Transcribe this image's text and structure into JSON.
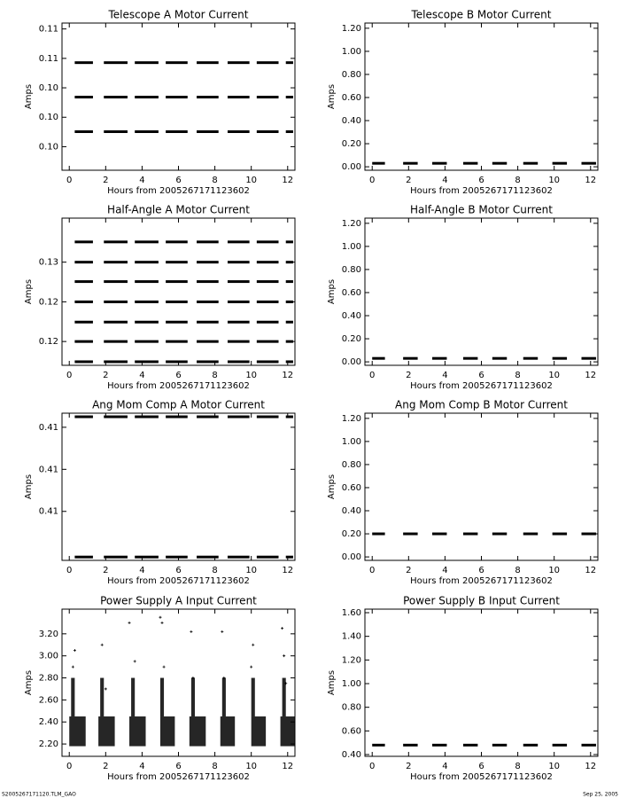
{
  "chart_data": [
    {
      "type": "scatter",
      "title": "Telescope A Motor Current",
      "xlabel": "Hours from 2005267171123602",
      "ylabel": "Amps",
      "color": "#000000",
      "xlim": [
        -0.4,
        12.4
      ],
      "xticks": [
        0,
        2,
        4,
        6,
        8,
        10,
        12
      ],
      "ylim": [
        0.0984,
        0.1084
      ],
      "yticks": [
        {
          "value": 0.108,
          "label": "0.11"
        },
        {
          "value": 0.106,
          "label": "0.11"
        },
        {
          "value": 0.104,
          "label": "0.10"
        },
        {
          "value": 0.102,
          "label": "0.10"
        },
        {
          "value": 0.1,
          "label": "0.10"
        }
      ],
      "levels": [
        0.10571,
        0.10337,
        0.10102
      ],
      "segments": [
        [
          0.3,
          1.3
        ],
        [
          1.9,
          3.2
        ],
        [
          3.6,
          4.9
        ],
        [
          5.3,
          6.5
        ],
        [
          7.0,
          8.2
        ],
        [
          8.7,
          9.9
        ],
        [
          10.3,
          11.5
        ],
        [
          11.9,
          12.3
        ]
      ]
    },
    {
      "type": "scatter",
      "title": "Telescope B Motor Current",
      "xlabel": "Hours from 2005267171123602",
      "ylabel": "Amps",
      "color": "#000000",
      "xlim": [
        -0.4,
        12.4
      ],
      "xticks": [
        0,
        2,
        4,
        6,
        8,
        10,
        12
      ],
      "ylim": [
        -0.03,
        1.245
      ],
      "yticks": [
        {
          "value": 0,
          "label": "0.00"
        },
        {
          "value": 0.2,
          "label": "0.20"
        },
        {
          "value": 0.4,
          "label": "0.40"
        },
        {
          "value": 0.6,
          "label": "0.60"
        },
        {
          "value": 0.8,
          "label": "0.80"
        },
        {
          "value": 1.0,
          "label": "1.00"
        },
        {
          "value": 1.2,
          "label": "1.20"
        }
      ],
      "levels": [
        0.03
      ],
      "segments": [
        [
          0.0,
          0.7
        ],
        [
          1.7,
          2.5
        ],
        [
          3.3,
          4.1
        ],
        [
          5.0,
          5.8
        ],
        [
          6.6,
          7.4
        ],
        [
          8.3,
          9.1
        ],
        [
          9.9,
          10.7
        ],
        [
          11.5,
          12.3
        ]
      ]
    },
    {
      "type": "scatter",
      "title": "Half-Angle A Motor Current",
      "xlabel": "Hours from 2005267171123602",
      "ylabel": "Amps",
      "color": "#000000",
      "xlim": [
        -0.4,
        12.4
      ],
      "xticks": [
        0,
        2,
        4,
        6,
        8,
        10,
        12
      ],
      "ylim": [
        0.1176,
        0.13244
      ],
      "yticks": [
        {
          "value": 0.128,
          "label": "0.13"
        },
        {
          "value": 0.124,
          "label": "0.12"
        },
        {
          "value": 0.12,
          "label": "0.12"
        }
      ],
      "levels": [
        0.13004,
        0.128,
        0.12604,
        0.124,
        0.12196,
        0.12,
        0.11796
      ],
      "segments": [
        [
          0.3,
          1.3
        ],
        [
          1.9,
          3.2
        ],
        [
          3.6,
          4.9
        ],
        [
          5.3,
          6.5
        ],
        [
          7.0,
          8.2
        ],
        [
          8.7,
          9.9
        ],
        [
          10.3,
          11.5
        ],
        [
          11.9,
          12.3
        ]
      ]
    },
    {
      "type": "scatter",
      "title": "Half-Angle B Motor Current",
      "xlabel": "Hours from 2005267171123602",
      "ylabel": "Amps",
      "color": "#000000",
      "xlim": [
        -0.4,
        12.4
      ],
      "xticks": [
        0,
        2,
        4,
        6,
        8,
        10,
        12
      ],
      "ylim": [
        -0.03,
        1.245
      ],
      "yticks": [
        {
          "value": 0,
          "label": "0.00"
        },
        {
          "value": 0.2,
          "label": "0.20"
        },
        {
          "value": 0.4,
          "label": "0.40"
        },
        {
          "value": 0.6,
          "label": "0.60"
        },
        {
          "value": 0.8,
          "label": "0.80"
        },
        {
          "value": 1.0,
          "label": "1.00"
        },
        {
          "value": 1.2,
          "label": "1.20"
        }
      ],
      "levels": [
        0.03
      ],
      "segments": [
        [
          0.0,
          0.7
        ],
        [
          1.7,
          2.5
        ],
        [
          3.3,
          4.1
        ],
        [
          5.0,
          5.8
        ],
        [
          6.6,
          7.4
        ],
        [
          8.3,
          9.1
        ],
        [
          9.9,
          10.7
        ],
        [
          11.5,
          12.3
        ]
      ]
    },
    {
      "type": "scatter",
      "title": "Ang Mom Comp A Motor Current",
      "xlabel": "Hours from 2005267171123602",
      "ylabel": "Amps",
      "color": "#000000",
      "xlim": [
        -0.4,
        12.4
      ],
      "xticks": [
        0,
        2,
        4,
        6,
        8,
        10,
        12
      ],
      "ylim": [
        0.40767,
        0.41467
      ],
      "yticks": [
        {
          "value": 0.414,
          "label": "0.41"
        },
        {
          "value": 0.412,
          "label": "0.41"
        },
        {
          "value": 0.41,
          "label": "0.41"
        }
      ],
      "levels": [
        0.4145,
        0.40783
      ],
      "segments": [
        [
          0.3,
          1.3
        ],
        [
          1.9,
          3.2
        ],
        [
          3.6,
          4.9
        ],
        [
          5.3,
          6.5
        ],
        [
          7.0,
          8.2
        ],
        [
          8.7,
          9.9
        ],
        [
          10.3,
          11.5
        ],
        [
          11.9,
          12.3
        ]
      ]
    },
    {
      "type": "scatter",
      "title": "Ang Mom Comp B Motor Current",
      "xlabel": "Hours from 2005267171123602",
      "ylabel": "Amps",
      "color": "#000000",
      "xlim": [
        -0.4,
        12.4
      ],
      "xticks": [
        0,
        2,
        4,
        6,
        8,
        10,
        12
      ],
      "ylim": [
        -0.03,
        1.245
      ],
      "yticks": [
        {
          "value": 0,
          "label": "0.00"
        },
        {
          "value": 0.2,
          "label": "0.20"
        },
        {
          "value": 0.4,
          "label": "0.40"
        },
        {
          "value": 0.6,
          "label": "0.60"
        },
        {
          "value": 0.8,
          "label": "0.80"
        },
        {
          "value": 1.0,
          "label": "1.00"
        },
        {
          "value": 1.2,
          "label": "1.20"
        }
      ],
      "levels": [
        0.2
      ],
      "segments": [
        [
          0.0,
          0.7
        ],
        [
          1.7,
          2.5
        ],
        [
          3.3,
          4.1
        ],
        [
          5.0,
          5.8
        ],
        [
          6.6,
          7.4
        ],
        [
          8.3,
          9.1
        ],
        [
          9.9,
          10.7
        ],
        [
          11.5,
          12.3
        ]
      ]
    },
    {
      "type": "scatter",
      "title": "Power Supply A Input Current",
      "xlabel": "Hours from 2005267171123602",
      "ylabel": "Amps",
      "color": "#000000",
      "xlim": [
        -0.4,
        12.4
      ],
      "xticks": [
        0,
        2,
        4,
        6,
        8,
        10,
        12
      ],
      "ylim": [
        2.088,
        3.424
      ],
      "yticks": [
        {
          "value": 2.2,
          "label": "2.20"
        },
        {
          "value": 2.4,
          "label": "2.40"
        },
        {
          "value": 2.6,
          "label": "2.60"
        },
        {
          "value": 2.8,
          "label": "2.80"
        },
        {
          "value": 3.0,
          "label": "3.00"
        },
        {
          "value": 3.2,
          "label": "3.20"
        }
      ],
      "clusters": [
        {
          "x": [
            0.0,
            0.9
          ],
          "y": [
            2.18,
            2.45
          ]
        },
        {
          "x": [
            0.1,
            0.3
          ],
          "y": [
            2.45,
            2.8
          ]
        },
        {
          "x": [
            1.6,
            2.5
          ],
          "y": [
            2.18,
            2.45
          ]
        },
        {
          "x": [
            1.7,
            1.9
          ],
          "y": [
            2.45,
            2.8
          ]
        },
        {
          "x": [
            3.3,
            4.2
          ],
          "y": [
            2.18,
            2.45
          ]
        },
        {
          "x": [
            3.4,
            3.6
          ],
          "y": [
            2.45,
            2.8
          ]
        },
        {
          "x": [
            5.0,
            5.8
          ],
          "y": [
            2.18,
            2.45
          ]
        },
        {
          "x": [
            5.0,
            5.2
          ],
          "y": [
            2.45,
            2.8
          ]
        },
        {
          "x": [
            6.6,
            7.5
          ],
          "y": [
            2.18,
            2.45
          ]
        },
        {
          "x": [
            6.7,
            6.9
          ],
          "y": [
            2.45,
            2.8
          ]
        },
        {
          "x": [
            8.3,
            9.1
          ],
          "y": [
            2.18,
            2.45
          ]
        },
        {
          "x": [
            8.4,
            8.6
          ],
          "y": [
            2.45,
            2.8
          ]
        },
        {
          "x": [
            10.0,
            10.8
          ],
          "y": [
            2.18,
            2.45
          ]
        },
        {
          "x": [
            10.0,
            10.2
          ],
          "y": [
            2.45,
            2.8
          ]
        },
        {
          "x": [
            11.6,
            12.4
          ],
          "y": [
            2.18,
            2.45
          ]
        },
        {
          "x": [
            11.7,
            11.9
          ],
          "y": [
            2.45,
            2.8
          ]
        }
      ],
      "x": [
        0.2,
        0.3,
        1.8,
        2.0,
        3.3,
        3.6,
        5.0,
        5.1,
        5.2,
        6.7,
        6.8,
        8.4,
        8.5,
        10.0,
        10.1,
        11.7,
        11.8,
        11.9
      ],
      "y": [
        2.9,
        3.05,
        3.1,
        2.7,
        3.3,
        2.95,
        3.35,
        3.3,
        2.9,
        3.22,
        2.8,
        3.22,
        2.8,
        2.9,
        3.1,
        3.25,
        3.0,
        2.75
      ]
    },
    {
      "type": "scatter",
      "title": "Power Supply B Input Current",
      "xlabel": "Hours from 2005267171123602",
      "ylabel": "Amps",
      "color": "#000000",
      "xlim": [
        -0.4,
        12.4
      ],
      "xticks": [
        0,
        2,
        4,
        6,
        8,
        10,
        12
      ],
      "ylim": [
        0.385,
        1.63
      ],
      "yticks": [
        {
          "value": 0.4,
          "label": "0.40"
        },
        {
          "value": 0.6,
          "label": "0.60"
        },
        {
          "value": 0.8,
          "label": "0.80"
        },
        {
          "value": 1.0,
          "label": "1.00"
        },
        {
          "value": 1.2,
          "label": "1.20"
        },
        {
          "value": 1.4,
          "label": "1.40"
        },
        {
          "value": 1.6,
          "label": "1.60"
        }
      ],
      "levels": [
        0.48
      ],
      "segments": [
        [
          0.0,
          0.7
        ],
        [
          1.7,
          2.5
        ],
        [
          3.3,
          4.1
        ],
        [
          5.0,
          5.8
        ],
        [
          6.6,
          7.4
        ],
        [
          8.3,
          9.1
        ],
        [
          9.9,
          10.7
        ],
        [
          11.5,
          12.3
        ]
      ]
    }
  ],
  "footer": {
    "left": "S2005267171120.TLM_GAO",
    "right": "Sep 25, 2005"
  }
}
